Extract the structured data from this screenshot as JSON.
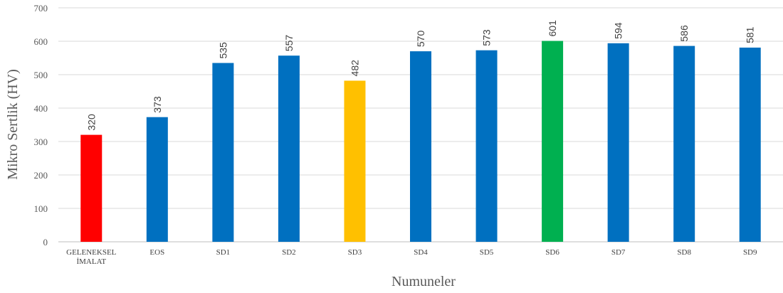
{
  "chart_data": {
    "type": "bar",
    "categories": [
      "GELENEKSEL İMALAT",
      "EOS",
      "SD1",
      "SD2",
      "SD3",
      "SD4",
      "SD5",
      "SD6",
      "SD7",
      "SD8",
      "SD9"
    ],
    "category_lines": [
      [
        "GELENEKSEL",
        "İMALAT"
      ],
      [
        "EOS"
      ],
      [
        "SD1"
      ],
      [
        "SD2"
      ],
      [
        "SD3"
      ],
      [
        "SD4"
      ],
      [
        "SD5"
      ],
      [
        "SD6"
      ],
      [
        "SD7"
      ],
      [
        "SD8"
      ],
      [
        "SD9"
      ]
    ],
    "values": [
      320,
      373,
      535,
      557,
      482,
      570,
      573,
      601,
      594,
      586,
      581
    ],
    "colors": [
      "#ff0000",
      "#0070c0",
      "#0070c0",
      "#0070c0",
      "#ffc000",
      "#0070c0",
      "#0070c0",
      "#00b050",
      "#0070c0",
      "#0070c0",
      "#0070c0"
    ],
    "xlabel": "Numuneler",
    "ylabel": "Mikro Sertlik (HV)",
    "ylim": [
      0,
      700
    ],
    "yticks": [
      0,
      100,
      200,
      300,
      400,
      500,
      600,
      700
    ],
    "grid": true,
    "data_labels": true
  }
}
